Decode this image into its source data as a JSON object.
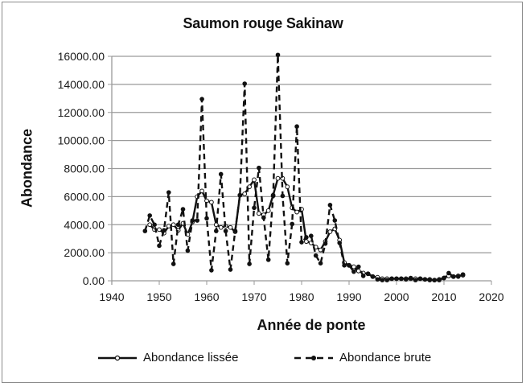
{
  "chart_data": {
    "type": "line",
    "title": "Saumon rouge Sakinaw",
    "xlabel": "Année de ponte",
    "ylabel": "Abondance",
    "xlim": [
      1940,
      2020
    ],
    "ylim": [
      0,
      16000
    ],
    "x_ticks": [
      "1940",
      "1950",
      "1960",
      "1970",
      "1980",
      "1990",
      "2000",
      "2010",
      "2020"
    ],
    "y_ticks": [
      "0.00",
      "2000.00",
      "4000.00",
      "6000.00",
      "8000.00",
      "10000.00",
      "12000.00",
      "14000.00",
      "16000.00"
    ],
    "grid": "horizontal",
    "legend_position": "bottom",
    "x": [
      1947,
      1948,
      1949,
      1950,
      1951,
      1952,
      1953,
      1954,
      1955,
      1956,
      1957,
      1958,
      1959,
      1960,
      1961,
      1962,
      1963,
      1964,
      1965,
      1966,
      1967,
      1968,
      1969,
      1970,
      1971,
      1972,
      1973,
      1974,
      1975,
      1976,
      1977,
      1978,
      1979,
      1980,
      1981,
      1982,
      1983,
      1984,
      1985,
      1986,
      1987,
      1988,
      1989,
      1990,
      1991,
      1992,
      1993,
      1994,
      1995,
      1996,
      1997,
      1998,
      1999,
      2000,
      2001,
      2002,
      2003,
      2004,
      2005,
      2006,
      2007,
      2008,
      2009,
      2010,
      2011,
      2012,
      2013,
      2014
    ],
    "series": [
      {
        "name": "Abondance lissée",
        "style": "solid-line-hollow-circle",
        "values": [
          null,
          4000,
          3650,
          3650,
          3400,
          3900,
          4000,
          3600,
          4100,
          3300,
          4200,
          6000,
          6400,
          5700,
          5600,
          4000,
          3800,
          3900,
          3800,
          3500,
          6100,
          6200,
          6700,
          7200,
          4800,
          4700,
          5000,
          6100,
          7300,
          7300,
          6700,
          5200,
          4900,
          5100,
          2800,
          2700,
          2400,
          2200,
          2800,
          3500,
          3700,
          2900,
          1300,
          1100,
          1000,
          700,
          550,
          500,
          300,
          250,
          150,
          150,
          150,
          150,
          150,
          150,
          150,
          150,
          150,
          100,
          100,
          50,
          100,
          200,
          350,
          300,
          350,
          400
        ]
      },
      {
        "name": "Abondance brute",
        "style": "dashed-line-filled-dot",
        "values": [
          3550,
          4650,
          4000,
          2500,
          3600,
          6300,
          1200,
          4000,
          5100,
          2150,
          4300,
          4300,
          12950,
          4450,
          750,
          3550,
          7600,
          3550,
          800,
          3550,
          6100,
          14050,
          1200,
          5200,
          8050,
          4500,
          1500,
          6050,
          16100,
          6050,
          1250,
          4050,
          11000,
          2750,
          3100,
          3200,
          1800,
          1250,
          2650,
          5400,
          4300,
          2700,
          1100,
          1100,
          650,
          1000,
          350,
          500,
          300,
          100,
          50,
          50,
          150,
          150,
          150,
          100,
          200,
          50,
          150,
          100,
          50,
          50,
          50,
          200,
          550,
          300,
          300,
          450
        ]
      }
    ]
  },
  "legend": {
    "smoothed_label": "Abondance lissée",
    "raw_label": "Abondance brute"
  },
  "colors": {
    "line": "#111111",
    "grid": "#9a9a9a",
    "frame": "#8a8a8a"
  }
}
